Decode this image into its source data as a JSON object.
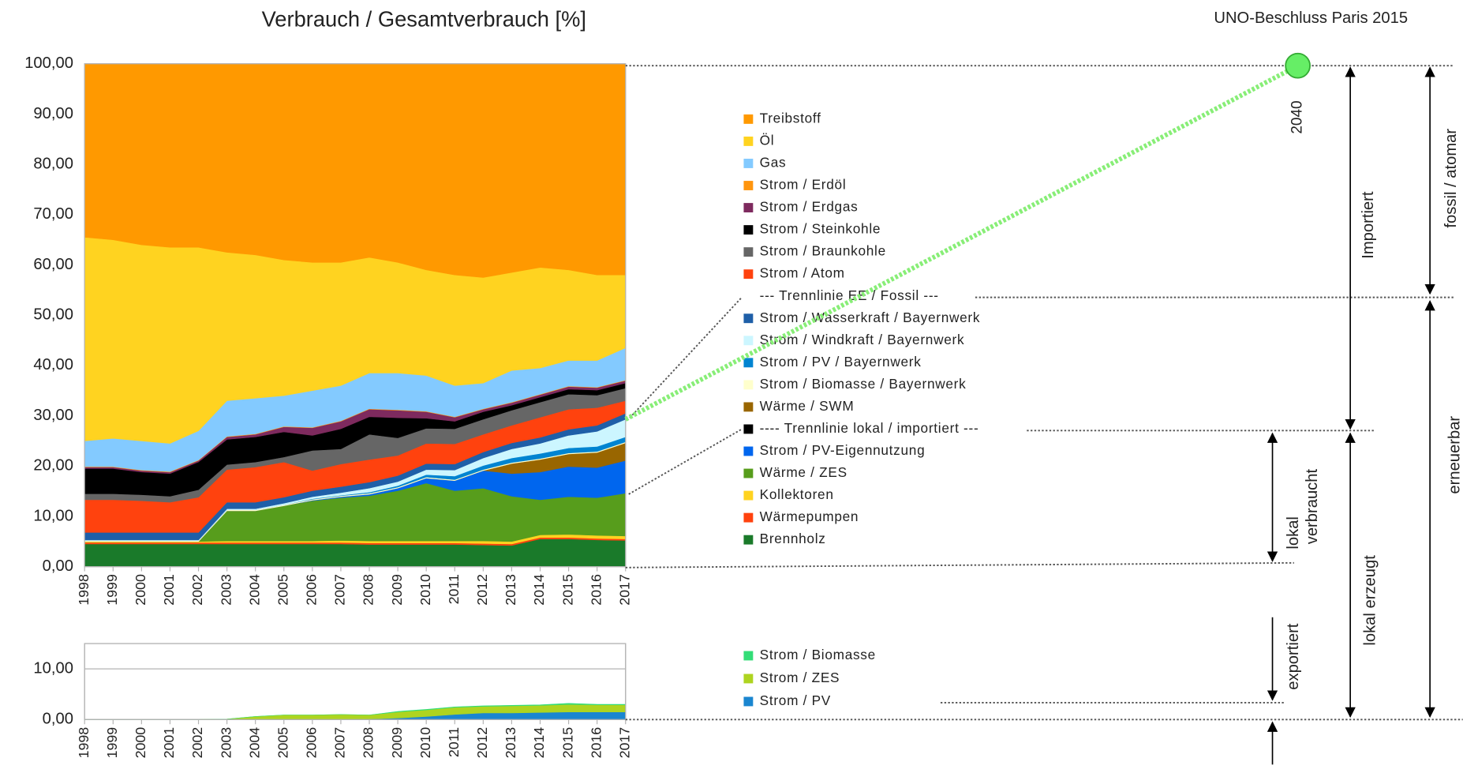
{
  "chart_data": [
    {
      "type": "stacked_area",
      "title": "Verbrauch / Gesamtverbrauch [%]",
      "x": [
        1998,
        1999,
        2000,
        2001,
        2002,
        2003,
        2004,
        2005,
        2006,
        2007,
        2008,
        2009,
        2010,
        2011,
        2012,
        2013,
        2014,
        2015,
        2016,
        2017
      ],
      "xlim": [
        1998,
        2017
      ],
      "xticks": [
        1998,
        1999,
        2000,
        2001,
        2002,
        2003,
        2004,
        2005,
        2006,
        2007,
        2008,
        2009,
        2010,
        2011,
        2012,
        2013,
        2014,
        2015,
        2016,
        2017
      ],
      "ylim": [
        0,
        100
      ],
      "yticks": [
        {
          "value": 0,
          "label": "0,00"
        },
        {
          "value": 10,
          "label": "10,00"
        },
        {
          "value": 20,
          "label": "20,00"
        },
        {
          "value": 30,
          "label": "30,00"
        },
        {
          "value": 40,
          "label": "40,00"
        },
        {
          "value": 50,
          "label": "50,00"
        },
        {
          "value": 60,
          "label": "60,00"
        },
        {
          "value": 70,
          "label": "70,00"
        },
        {
          "value": 80,
          "label": "80,00"
        },
        {
          "value": 90,
          "label": "90,00"
        },
        {
          "value": 100,
          "label": "100,00"
        }
      ],
      "grid": true,
      "series": [
        {
          "name": "Treibstoff",
          "color": "#ff9900",
          "values": [
            34.5,
            35,
            36,
            36.5,
            36.5,
            37.5,
            38,
            39,
            39.5,
            39.5,
            38.5,
            39.5,
            41,
            42,
            42.5,
            41.5,
            40.5,
            41,
            42,
            42
          ]
        },
        {
          "name": "Öl",
          "color": "#ffd320",
          "values": [
            40.5,
            39.5,
            39,
            39,
            36.5,
            29.5,
            28.5,
            27,
            25.5,
            24.5,
            23,
            22,
            21,
            22,
            21,
            19.5,
            20,
            18,
            17,
            14.5
          ]
        },
        {
          "name": "Gas",
          "color": "#83caff",
          "values": [
            5.1,
            5.6,
            5.8,
            5.6,
            5.8,
            7.1,
            7.1,
            6.1,
            7.3,
            7,
            7.1,
            7.3,
            7.1,
            6.2,
            5.1,
            6.3,
            5.2,
            5.1,
            5.3,
            6.4
          ]
        },
        {
          "name": "Strom / Erdöl",
          "color": "#ff950e",
          "values": [
            0.1,
            0.1,
            0.1,
            0.1,
            0.1,
            0.1,
            0.1,
            0.1,
            0.1,
            0.1,
            0.1,
            0.1,
            0.1,
            0.1,
            0.1,
            0.1,
            0.1,
            0.1,
            0.1,
            0.1
          ]
        },
        {
          "name": "Strom / Erdgas",
          "color": "#7e2a5e",
          "values": [
            0.3,
            0.3,
            0.3,
            0.3,
            0.3,
            0.5,
            0.5,
            1,
            1.5,
            1.5,
            1.5,
            1.5,
            1.3,
            0.8,
            0.5,
            0.5,
            0.5,
            0.5,
            0.5,
            0.5
          ]
        },
        {
          "name": "Strom / Steinkohle",
          "color": "#000000",
          "values": [
            5,
            5,
            4.5,
            4.5,
            5.5,
            5,
            5,
            5,
            3,
            4,
            3.5,
            4,
            2,
            1.5,
            1.5,
            1,
            1,
            1,
            1,
            1
          ]
        },
        {
          "name": "Strom / Braunkohle",
          "color": "#666666",
          "values": [
            1.2,
            1.2,
            1.2,
            1.2,
            1.5,
            1,
            1,
            1,
            4,
            3,
            5,
            3.5,
            3,
            3,
            3,
            3,
            3,
            3,
            2.5,
            2.5
          ]
        },
        {
          "name": "Strom / Atom",
          "color": "#ff420e",
          "values": [
            6.5,
            6.5,
            6.3,
            6,
            7,
            6.5,
            7,
            7,
            4,
            4.5,
            4.5,
            4,
            4,
            4,
            3.5,
            3.5,
            4,
            4,
            3.5,
            2.5
          ]
        },
        {
          "name": "--- Trennlinie EE / Fossil ---",
          "values": [
            null,
            null,
            null,
            null,
            null,
            null,
            null,
            null,
            null,
            null,
            null,
            null,
            null,
            null,
            null,
            null,
            null,
            null,
            null,
            null
          ]
        },
        {
          "name": "Strom / Wasserkraft / Bayernwerk",
          "color": "#1f5fa8",
          "values": [
            1.5,
            1.5,
            1.5,
            1.5,
            1.5,
            1.3,
            1.3,
            1.2,
            1.2,
            1.2,
            1.2,
            1.2,
            1.2,
            1.2,
            1.2,
            1.2,
            1.2,
            1.2,
            1.2,
            1.2
          ]
        },
        {
          "name": "Strom / Windkraft / Bayernwerk",
          "color": "#ccf6ff",
          "values": [
            0.1,
            0.1,
            0.1,
            0.1,
            0.1,
            0.2,
            0.2,
            0.3,
            0.4,
            0.5,
            0.8,
            0.8,
            1,
            1.2,
            1.5,
            1.8,
            2,
            2.5,
            3,
            3.5
          ]
        },
        {
          "name": "Strom / PV / Bayernwerk",
          "color": "#0084d1",
          "values": [
            0,
            0,
            0,
            0,
            0,
            0,
            0,
            0,
            0.1,
            0.1,
            0.2,
            0.3,
            0.5,
            0.7,
            0.8,
            0.9,
            1,
            1,
            1,
            1
          ]
        },
        {
          "name": "Strom / Biomasse / Bayernwerk",
          "color": "#ffffcc",
          "values": [
            0.2,
            0.2,
            0.2,
            0.2,
            0.2,
            0.2,
            0.2,
            0.2,
            0.2,
            0.2,
            0.2,
            0.2,
            0.2,
            0.2,
            0.2,
            0.2,
            0.2,
            0.2,
            0.2,
            0.2
          ]
        },
        {
          "name": "Wärme / SWM",
          "color": "#996600",
          "values": [
            0,
            0,
            0,
            0,
            0,
            0,
            0,
            0,
            0,
            0,
            0,
            0,
            0,
            0,
            0,
            2,
            2.5,
            2.5,
            3,
            3.5
          ]
        },
        {
          "name": "---- Trennlinie lokal / importiert ---",
          "color": "#000000",
          "values": [
            null,
            null,
            null,
            null,
            null,
            null,
            null,
            null,
            null,
            null,
            null,
            null,
            null,
            null,
            null,
            null,
            null,
            null,
            null,
            null
          ]
        },
        {
          "name": "Strom / PV-Eigennutzung",
          "color": "#0066ee",
          "values": [
            0,
            0,
            0,
            0,
            0,
            0,
            0,
            0,
            0.1,
            0.2,
            0.3,
            0.5,
            1,
            2,
            3.5,
            4.5,
            5.5,
            6,
            6,
            6.5
          ]
        },
        {
          "name": "Wärme / ZES",
          "color": "#579d1c",
          "values": [
            0,
            0,
            0,
            0,
            0,
            6,
            6,
            7,
            8,
            8.5,
            9,
            10,
            11.5,
            10,
            10.5,
            9,
            7,
            7.5,
            7.5,
            8.5
          ]
        },
        {
          "name": "Kollektoren",
          "color": "#ffd320",
          "values": [
            0.2,
            0.2,
            0.2,
            0.2,
            0.2,
            0.3,
            0.3,
            0.3,
            0.3,
            0.4,
            0.4,
            0.4,
            0.4,
            0.4,
            0.5,
            0.5,
            0.5,
            0.6,
            0.6,
            0.6
          ]
        },
        {
          "name": "Wärmepumpen",
          "color": "#ff420e",
          "values": [
            0.3,
            0.3,
            0.3,
            0.3,
            0.3,
            0.3,
            0.3,
            0.3,
            0.3,
            0.3,
            0.3,
            0.3,
            0.3,
            0.3,
            0.3,
            0.3,
            0.3,
            0.3,
            0.3,
            0.3
          ]
        },
        {
          "name": "Brennholz",
          "color": "#1a7a2a",
          "values": [
            4.5,
            4.5,
            4.5,
            4.5,
            4.5,
            4.5,
            4.5,
            4.5,
            4.5,
            4.5,
            4.4,
            4.4,
            4.4,
            4.4,
            4.3,
            4.2,
            5.5,
            5.5,
            5.3,
            5.2
          ]
        }
      ],
      "annotations": [
        "UNO-Beschluss Paris 2015",
        "2040",
        "Importiert",
        "fossil / atomar",
        "erneuerbar",
        "lokal",
        "verbraucht",
        "lokal erzeugt",
        "exportiert"
      ]
    },
    {
      "type": "stacked_area",
      "x": [
        1998,
        1999,
        2000,
        2001,
        2002,
        2003,
        2004,
        2005,
        2006,
        2007,
        2008,
        2009,
        2010,
        2011,
        2012,
        2013,
        2014,
        2015,
        2016,
        2017
      ],
      "xlim": [
        1998,
        2017
      ],
      "xticks": [
        1998,
        1999,
        2000,
        2001,
        2002,
        2003,
        2004,
        2005,
        2006,
        2007,
        2008,
        2009,
        2010,
        2011,
        2012,
        2013,
        2014,
        2015,
        2016,
        2017
      ],
      "ylim": [
        0,
        15
      ],
      "yticks": [
        {
          "value": 0,
          "label": "0,00"
        },
        {
          "value": 10,
          "label": "10,00"
        }
      ],
      "grid": true,
      "series": [
        {
          "name": "Strom / Biomasse",
          "color": "#33dd77",
          "values": [
            0,
            0,
            0,
            0,
            0,
            0,
            0,
            0,
            0,
            0,
            0,
            0.1,
            0.1,
            0.1,
            0.1,
            0.1,
            0.1,
            0.2,
            0.1,
            0.1
          ]
        },
        {
          "name": "Strom / ZES",
          "color": "#aed420",
          "values": [
            0,
            0,
            0,
            0,
            0,
            0.1,
            0.6,
            0.9,
            0.9,
            1,
            0.8,
            1.2,
            1.3,
            1.4,
            1.3,
            1.4,
            1.4,
            1.5,
            1.4,
            1.4
          ]
        },
        {
          "name": "Strom / PV",
          "color": "#1a86d0",
          "values": [
            0,
            0,
            0,
            0,
            0,
            0,
            0,
            0,
            0,
            0,
            0.1,
            0.3,
            0.6,
            1,
            1.3,
            1.3,
            1.4,
            1.5,
            1.5,
            1.5
          ]
        }
      ]
    }
  ]
}
